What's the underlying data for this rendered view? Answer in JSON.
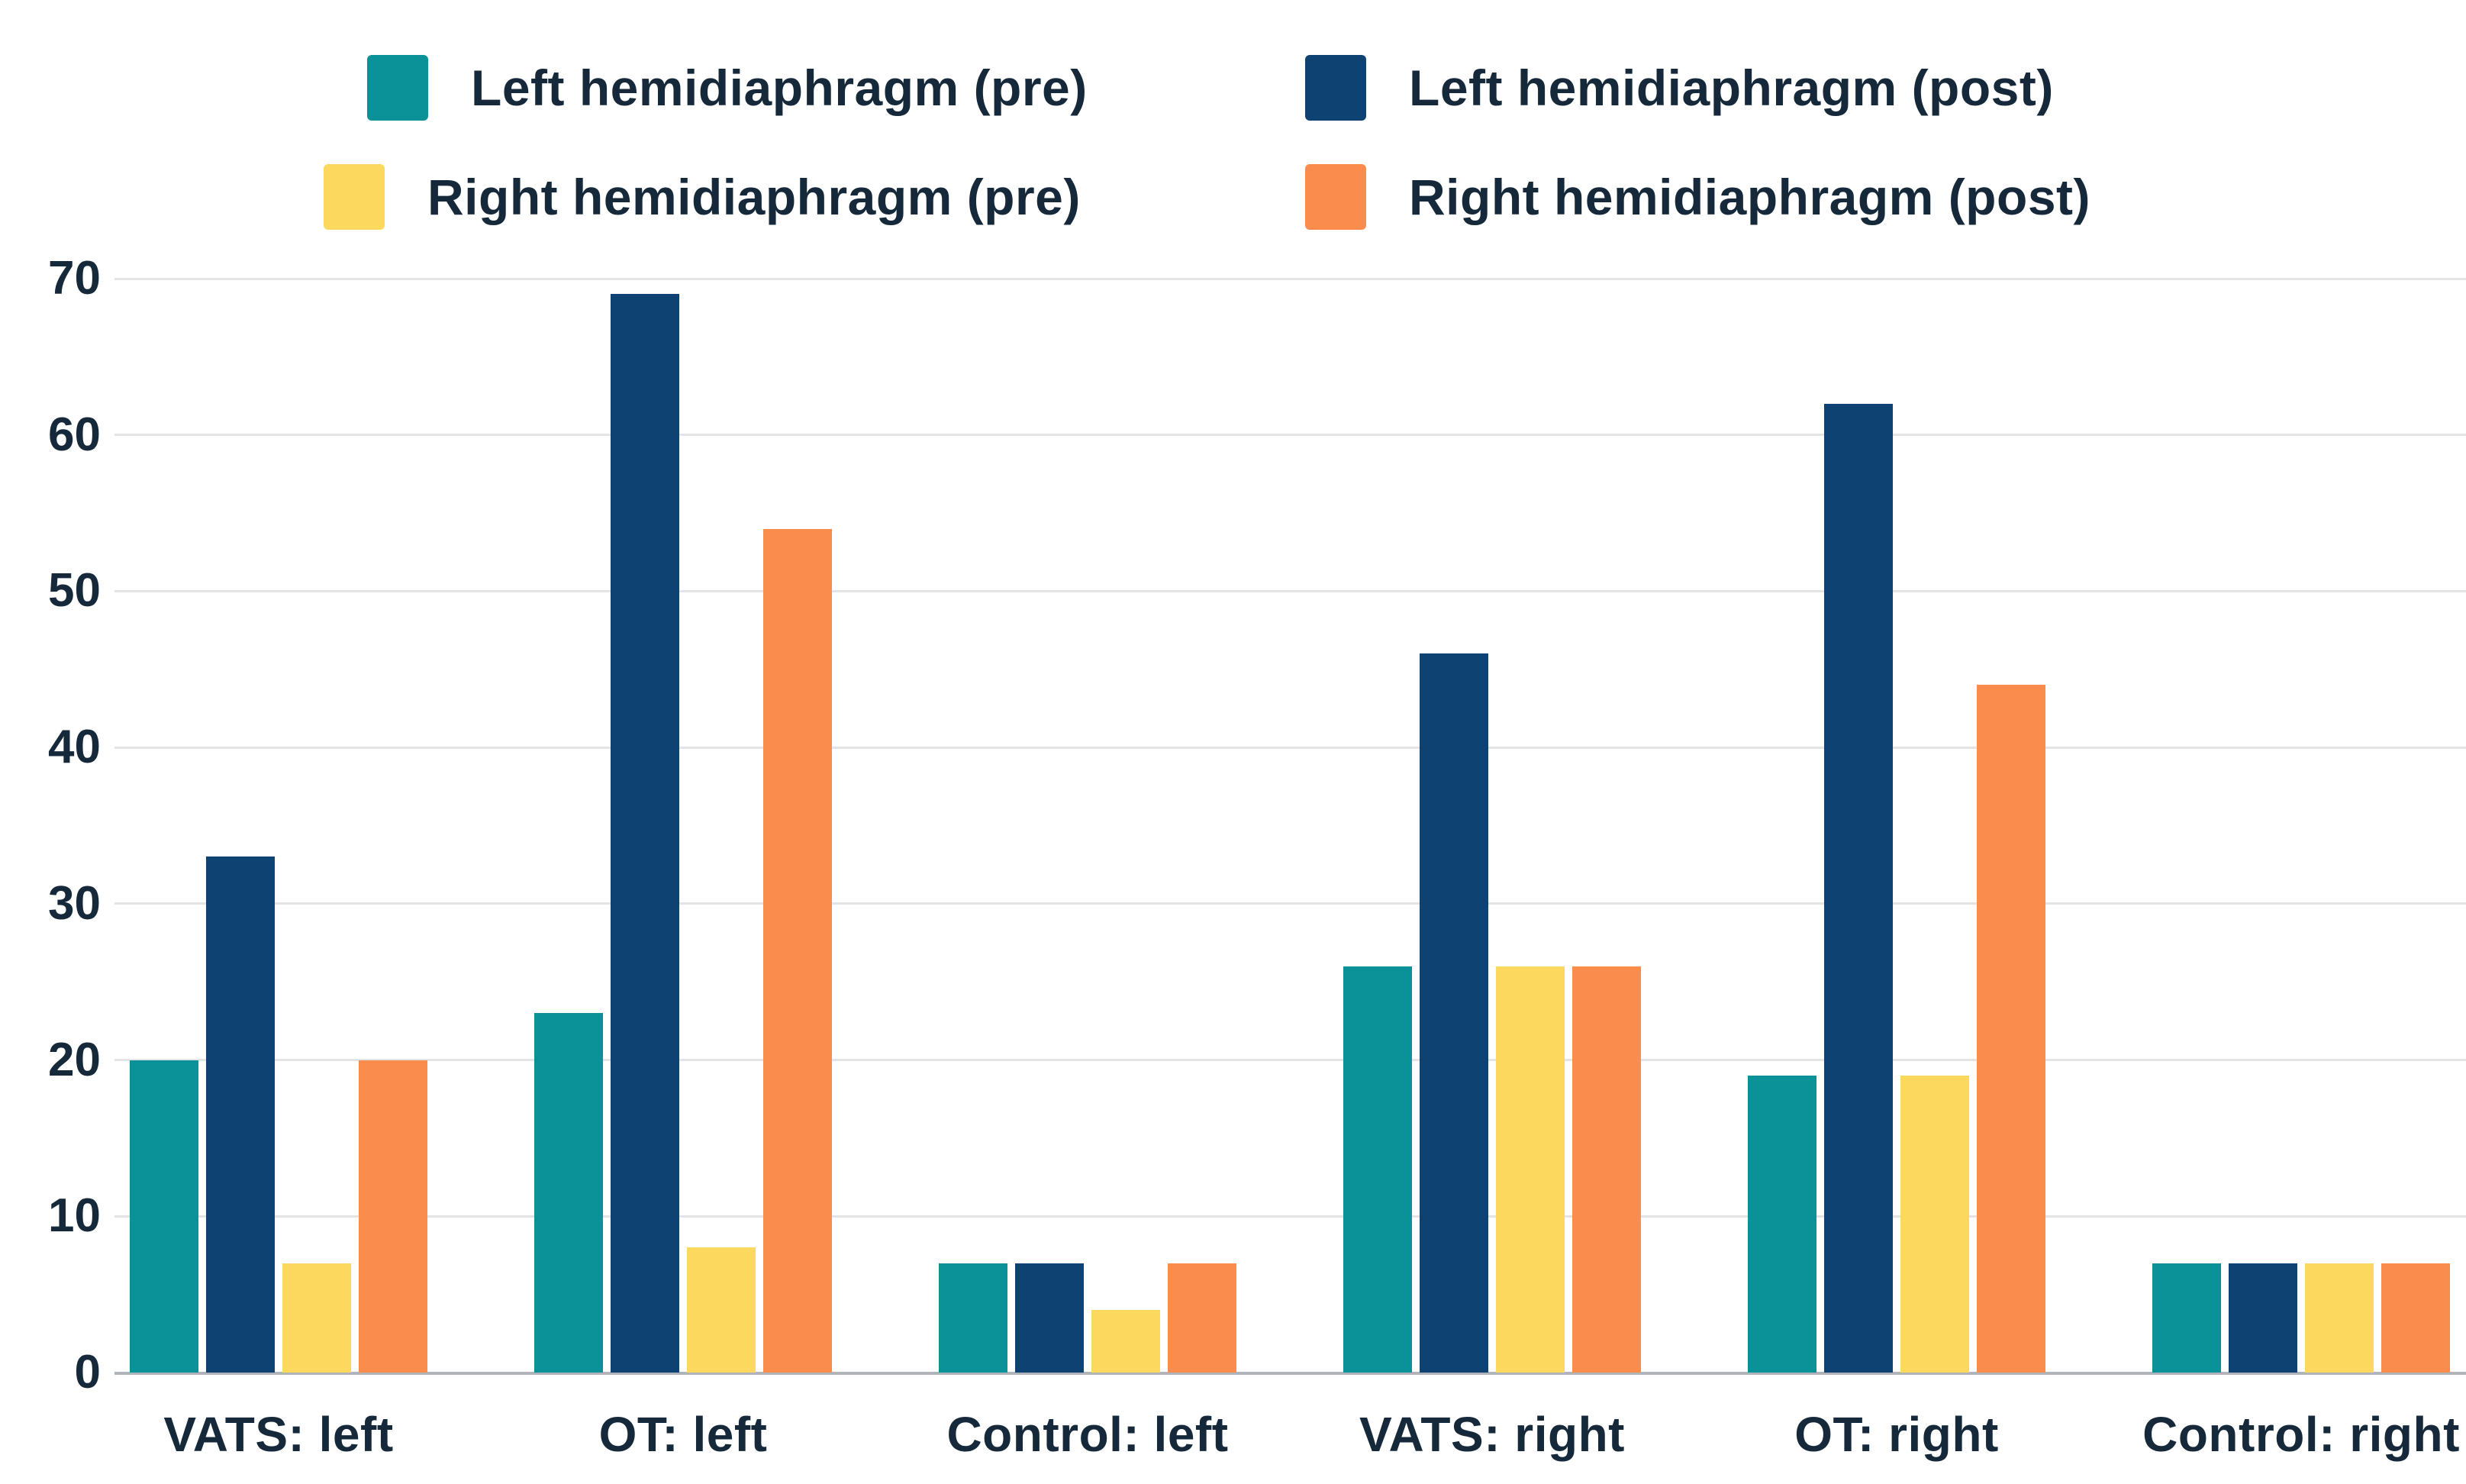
{
  "chart_data": {
    "type": "bar",
    "title": "",
    "xlabel": "",
    "ylabel": "",
    "categories": [
      "VATS: left",
      "OT: left",
      "Control: left",
      "VATS: right",
      "OT: right",
      "Control: right"
    ],
    "series": [
      {
        "name": "Left hemidiaphragm (pre)",
        "color": "#0a9298",
        "values": [
          20,
          23,
          7,
          26,
          19,
          7
        ]
      },
      {
        "name": "Left hemidiaphragm (post)",
        "color": "#0d4272",
        "values": [
          33,
          69,
          7,
          46,
          62,
          7
        ]
      },
      {
        "name": "Right hemidiaphragm (pre)",
        "color": "#fcd95e",
        "values": [
          7,
          8,
          4,
          26,
          19,
          7
        ]
      },
      {
        "name": "Right hemidiaphragm (post)",
        "color": "#fa8d4d",
        "values": [
          20,
          54,
          7,
          26,
          44,
          7
        ]
      }
    ],
    "ylim": [
      0,
      70
    ],
    "yticks": [
      0,
      10,
      20,
      30,
      40,
      50,
      60,
      70
    ],
    "grid": true,
    "legend_position": "top",
    "colors": {
      "text": "#16293b",
      "gridline": "#e3e4e6",
      "baseline": "#aeb4b9",
      "background": "#ffffff"
    }
  }
}
